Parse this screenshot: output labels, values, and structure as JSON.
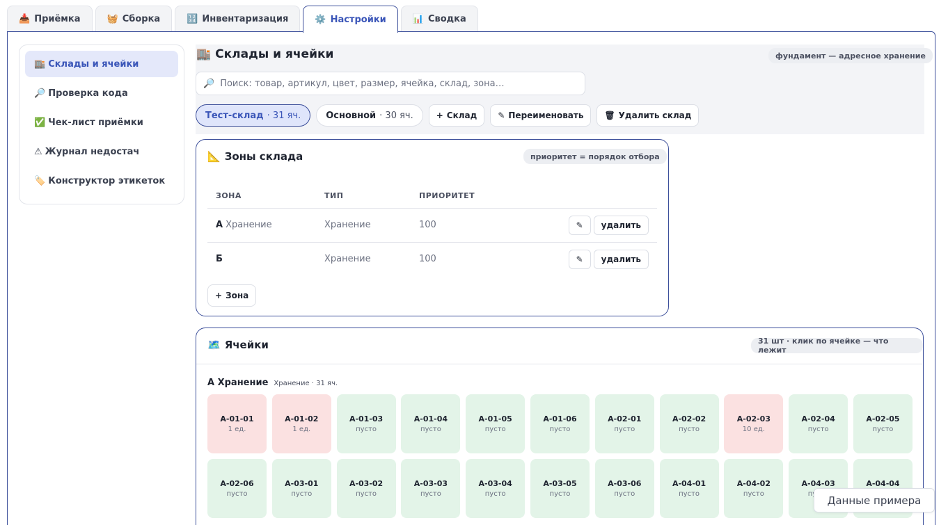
{
  "tabs": [
    {
      "icon": "📥",
      "label": "Приёмка"
    },
    {
      "icon": "🧺",
      "label": "Сборка"
    },
    {
      "icon": "🔢",
      "label": "Инвентаризация"
    },
    {
      "icon": "⚙️",
      "label": "Настройки",
      "active": true
    },
    {
      "icon": "📊",
      "label": "Сводка"
    }
  ],
  "sidebar": {
    "items": [
      {
        "icon": "🏬",
        "label": "Склады и ячейки",
        "active": true
      },
      {
        "icon": "🔎",
        "label": "Проверка кода"
      },
      {
        "icon": "✅",
        "label": "Чек-лист приёмки"
      },
      {
        "icon": "⚠",
        "label": "Журнал недостач"
      },
      {
        "icon": "🏷️",
        "label": "Конструктор этикеток"
      }
    ]
  },
  "header": {
    "icon": "🏬",
    "title": "Склады и ячейки",
    "badge": "фундамент — адресное хранение"
  },
  "search": {
    "icon": "🔎",
    "placeholder": "Поиск: товар, артикул, цвет, размер, ячейка, склад, зона…",
    "value": ""
  },
  "warehouses": [
    {
      "name": "Тест-склад",
      "count": "· 31 яч.",
      "active": true
    },
    {
      "name": "Основной",
      "count": "· 30 яч."
    }
  ],
  "warehouse_actions": {
    "add_icon": "+",
    "add_label": "Склад",
    "rename_icon": "✎",
    "rename_label": "Переименовать",
    "delete_icon": "🗑",
    "delete_label": "Удалить склад"
  },
  "zones_card": {
    "icon": "📐",
    "title": "Зоны склада",
    "badge": "приоритет = порядок отбора",
    "columns": [
      "ЗОНА",
      "ТИП",
      "ПРИОРИТЕТ"
    ],
    "rows": [
      {
        "code": "А",
        "name": "Хранение",
        "type": "Хранение",
        "priority": "100",
        "edit_icon": "✎",
        "delete_label": "удалить"
      },
      {
        "code": "Б",
        "name": "",
        "type": "Хранение",
        "priority": "100",
        "edit_icon": "✎",
        "delete_label": "удалить"
      }
    ],
    "add_icon": "+",
    "add_label": "Зона"
  },
  "cells_card": {
    "icon": "🗺️",
    "title": "Ячейки",
    "badge": "31 шт · клик по ячейке — что лежит",
    "zone_label": "А Хранение",
    "zone_sub": "Хранение · 31 яч.",
    "cells": [
      {
        "code": "A-01-01",
        "status": "1 ед.",
        "state": "full"
      },
      {
        "code": "A-01-02",
        "status": "1 ед.",
        "state": "full"
      },
      {
        "code": "A-01-03",
        "status": "пусто",
        "state": "empty"
      },
      {
        "code": "A-01-04",
        "status": "пусто",
        "state": "empty"
      },
      {
        "code": "A-01-05",
        "status": "пусто",
        "state": "empty"
      },
      {
        "code": "A-01-06",
        "status": "пусто",
        "state": "empty"
      },
      {
        "code": "A-02-01",
        "status": "пусто",
        "state": "empty"
      },
      {
        "code": "A-02-02",
        "status": "пусто",
        "state": "empty"
      },
      {
        "code": "A-02-03",
        "status": "10 ед.",
        "state": "full"
      },
      {
        "code": "A-02-04",
        "status": "пусто",
        "state": "empty"
      },
      {
        "code": "A-02-05",
        "status": "пусто",
        "state": "empty"
      },
      {
        "code": "A-02-06",
        "status": "пусто",
        "state": "empty"
      },
      {
        "code": "A-03-01",
        "status": "пусто",
        "state": "empty"
      },
      {
        "code": "A-03-02",
        "status": "пусто",
        "state": "empty"
      },
      {
        "code": "A-03-03",
        "status": "пусто",
        "state": "empty"
      },
      {
        "code": "A-03-04",
        "status": "пусто",
        "state": "empty"
      },
      {
        "code": "A-03-05",
        "status": "пусто",
        "state": "empty"
      },
      {
        "code": "A-03-06",
        "status": "пусто",
        "state": "empty"
      },
      {
        "code": "A-04-01",
        "status": "пусто",
        "state": "empty"
      },
      {
        "code": "A-04-02",
        "status": "пусто",
        "state": "empty"
      },
      {
        "code": "A-04-03",
        "status": "пусто",
        "state": "empty"
      },
      {
        "code": "A-04-04",
        "status": "пусто",
        "state": "empty"
      }
    ]
  },
  "demo_button": "Данные примера",
  "colors": {
    "accent": "#3a55b8",
    "border_accent": "#3b4e9a",
    "cell_empty": "#e3f4e8",
    "cell_full": "#fbe1e1"
  }
}
